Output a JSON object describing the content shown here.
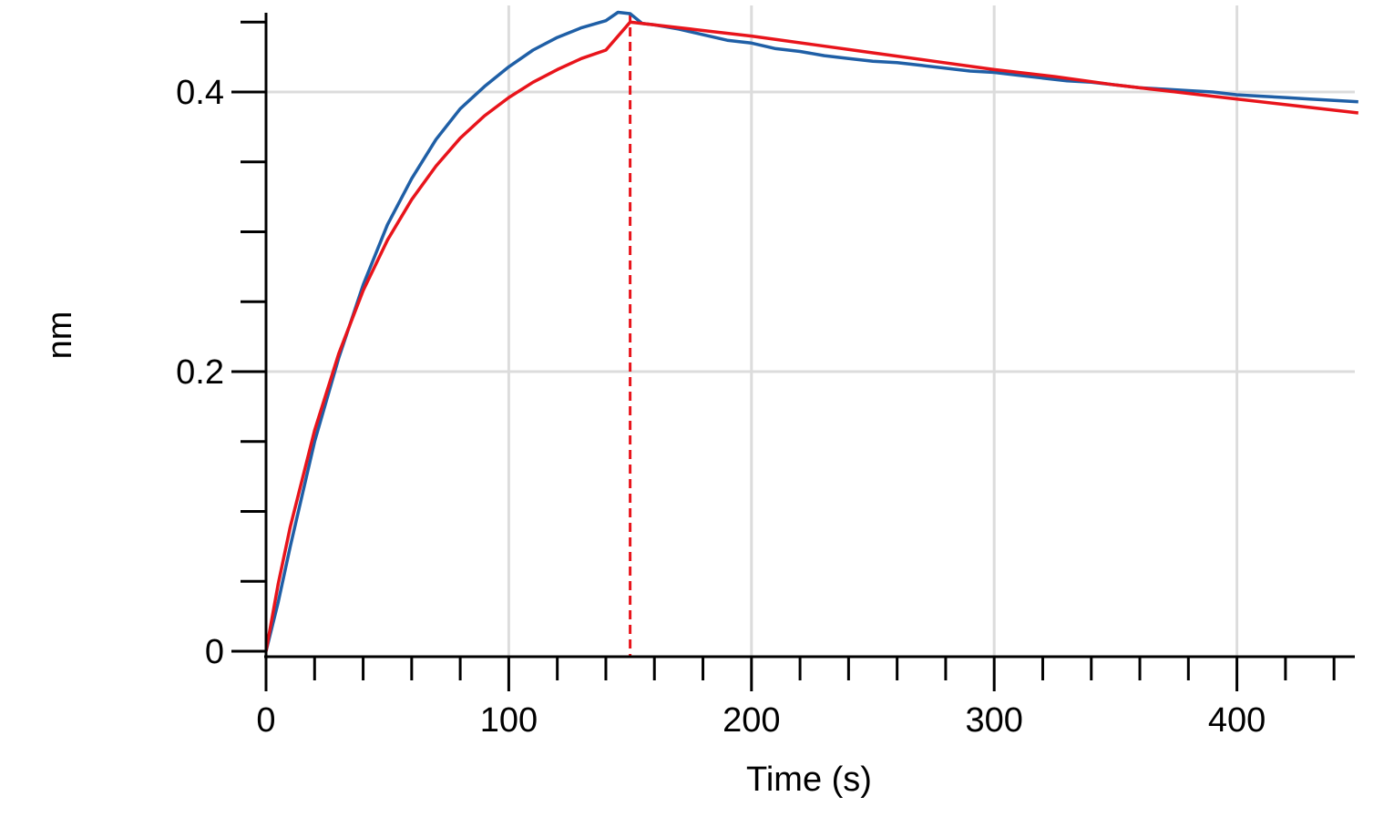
{
  "chart_data": {
    "type": "line",
    "title": "",
    "xlabel": "Time (s)",
    "ylabel": "nm",
    "xlim": [
      0,
      450
    ],
    "ylim": [
      0,
      0.46
    ],
    "x_ticks": [
      0,
      100,
      200,
      300,
      400
    ],
    "x_tick_labels": [
      "0",
      "100",
      "200",
      "300",
      "400"
    ],
    "x_minor_ticks": [
      20,
      40,
      60,
      80,
      120,
      140,
      160,
      180,
      220,
      240,
      260,
      280,
      320,
      340,
      360,
      380,
      420,
      440
    ],
    "y_ticks": [
      0,
      0.2,
      0.4
    ],
    "y_tick_labels": [
      "0",
      "0.2",
      "0.4"
    ],
    "y_minor_ticks": [
      0.05,
      0.1,
      0.15,
      0.25,
      0.3,
      0.35,
      0.45
    ],
    "grid": true,
    "legend": "none",
    "vertical_markers": [
      {
        "x": 0,
        "style": "dashed",
        "color": "#e8141b"
      },
      {
        "x": 150,
        "style": "dashed",
        "color": "#e8141b"
      }
    ],
    "series": [
      {
        "color": "#1f5fa6",
        "style": "step",
        "x": [
          0,
          5,
          10,
          20,
          30,
          40,
          50,
          60,
          70,
          80,
          90,
          100,
          110,
          120,
          130,
          140,
          145,
          150,
          155,
          160,
          170,
          180,
          190,
          200,
          210,
          220,
          230,
          240,
          250,
          260,
          270,
          280,
          290,
          300,
          310,
          320,
          330,
          340,
          350,
          360,
          370,
          380,
          390,
          400,
          410,
          420,
          430,
          440,
          450
        ],
        "values": [
          0.0,
          0.035,
          0.075,
          0.15,
          0.21,
          0.262,
          0.305,
          0.338,
          0.366,
          0.388,
          0.404,
          0.418,
          0.43,
          0.439,
          0.446,
          0.451,
          0.457,
          0.456,
          0.449,
          0.448,
          0.445,
          0.441,
          0.437,
          0.435,
          0.431,
          0.429,
          0.426,
          0.424,
          0.422,
          0.421,
          0.419,
          0.417,
          0.415,
          0.414,
          0.412,
          0.41,
          0.408,
          0.407,
          0.405,
          0.403,
          0.402,
          0.401,
          0.4,
          0.398,
          0.397,
          0.396,
          0.395,
          0.394,
          0.393
        ]
      },
      {
        "color": "#e8141b",
        "style": "line",
        "x": [
          0,
          5,
          10,
          20,
          30,
          40,
          50,
          60,
          70,
          80,
          90,
          100,
          110,
          120,
          130,
          140,
          150,
          175,
          200,
          225,
          250,
          275,
          300,
          325,
          350,
          375,
          400,
          425,
          450
        ],
        "values": [
          0.0,
          0.048,
          0.089,
          0.158,
          0.213,
          0.258,
          0.294,
          0.323,
          0.347,
          0.367,
          0.383,
          0.396,
          0.407,
          0.416,
          0.424,
          0.43,
          0.45,
          0.445,
          0.44,
          0.434,
          0.428,
          0.422,
          0.416,
          0.411,
          0.405,
          0.4,
          0.395,
          0.39,
          0.385
        ]
      }
    ]
  }
}
